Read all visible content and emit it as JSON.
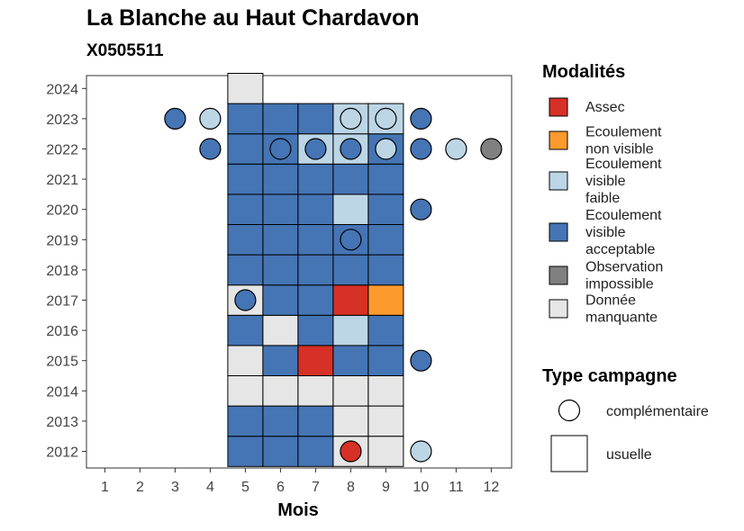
{
  "title": "La Blanche au Haut Chardavon",
  "subtitle": "X0505511",
  "chart_data": {
    "type": "heatmap",
    "xlabel": "Mois",
    "ylabel": "",
    "x_ticks": [
      "1",
      "2",
      "3",
      "4",
      "5",
      "6",
      "7",
      "8",
      "9",
      "10",
      "11",
      "12"
    ],
    "y_ticks": [
      "2012",
      "2013",
      "2014",
      "2015",
      "2016",
      "2017",
      "2018",
      "2019",
      "2020",
      "2021",
      "2022",
      "2023",
      "2024"
    ],
    "grid": false,
    "colors": {
      "assec": "#d73027",
      "non_visible": "#fd9a2e",
      "faible": "#bcd6e6",
      "acceptable": "#4575b4",
      "impossible": "#808080",
      "manquante": "#e6e6e6"
    },
    "legend_position": "right",
    "legend": {
      "title": "Modalités",
      "items": [
        {
          "key": "assec",
          "label": [
            "Assec"
          ]
        },
        {
          "key": "non_visible",
          "label": [
            "Ecoulement",
            "non visible"
          ]
        },
        {
          "key": "faible",
          "label": [
            "Ecoulement",
            "visible",
            "faible"
          ]
        },
        {
          "key": "acceptable",
          "label": [
            "Ecoulement",
            "visible",
            "acceptable"
          ]
        },
        {
          "key": "impossible",
          "label": [
            "Observation",
            "impossible"
          ]
        },
        {
          "key": "manquante",
          "label": [
            "Donnée",
            "manquante"
          ]
        }
      ]
    },
    "legend_type": {
      "title": "Type campagne",
      "items": [
        {
          "shape": "circle",
          "label": "complémentaire"
        },
        {
          "shape": "square",
          "label": "usuelle"
        }
      ]
    },
    "usuelle": [
      {
        "year": 2012,
        "month": 5,
        "value": "acceptable"
      },
      {
        "year": 2012,
        "month": 6,
        "value": "acceptable"
      },
      {
        "year": 2012,
        "month": 7,
        "value": "acceptable"
      },
      {
        "year": 2012,
        "month": 8,
        "value": "manquante"
      },
      {
        "year": 2012,
        "month": 9,
        "value": "manquante"
      },
      {
        "year": 2013,
        "month": 5,
        "value": "acceptable"
      },
      {
        "year": 2013,
        "month": 6,
        "value": "acceptable"
      },
      {
        "year": 2013,
        "month": 7,
        "value": "acceptable"
      },
      {
        "year": 2013,
        "month": 8,
        "value": "manquante"
      },
      {
        "year": 2013,
        "month": 9,
        "value": "manquante"
      },
      {
        "year": 2014,
        "month": 5,
        "value": "manquante"
      },
      {
        "year": 2014,
        "month": 6,
        "value": "manquante"
      },
      {
        "year": 2014,
        "month": 7,
        "value": "manquante"
      },
      {
        "year": 2014,
        "month": 8,
        "value": "manquante"
      },
      {
        "year": 2014,
        "month": 9,
        "value": "manquante"
      },
      {
        "year": 2015,
        "month": 5,
        "value": "manquante"
      },
      {
        "year": 2015,
        "month": 6,
        "value": "acceptable"
      },
      {
        "year": 2015,
        "month": 7,
        "value": "assec"
      },
      {
        "year": 2015,
        "month": 8,
        "value": "acceptable"
      },
      {
        "year": 2015,
        "month": 9,
        "value": "acceptable"
      },
      {
        "year": 2016,
        "month": 5,
        "value": "acceptable"
      },
      {
        "year": 2016,
        "month": 6,
        "value": "manquante"
      },
      {
        "year": 2016,
        "month": 7,
        "value": "acceptable"
      },
      {
        "year": 2016,
        "month": 8,
        "value": "faible"
      },
      {
        "year": 2016,
        "month": 9,
        "value": "acceptable"
      },
      {
        "year": 2017,
        "month": 5,
        "value": "manquante"
      },
      {
        "year": 2017,
        "month": 6,
        "value": "acceptable"
      },
      {
        "year": 2017,
        "month": 7,
        "value": "acceptable"
      },
      {
        "year": 2017,
        "month": 8,
        "value": "assec"
      },
      {
        "year": 2017,
        "month": 9,
        "value": "non_visible"
      },
      {
        "year": 2018,
        "month": 5,
        "value": "acceptable"
      },
      {
        "year": 2018,
        "month": 6,
        "value": "acceptable"
      },
      {
        "year": 2018,
        "month": 7,
        "value": "acceptable"
      },
      {
        "year": 2018,
        "month": 8,
        "value": "acceptable"
      },
      {
        "year": 2018,
        "month": 9,
        "value": "acceptable"
      },
      {
        "year": 2019,
        "month": 5,
        "value": "acceptable"
      },
      {
        "year": 2019,
        "month": 6,
        "value": "acceptable"
      },
      {
        "year": 2019,
        "month": 7,
        "value": "acceptable"
      },
      {
        "year": 2019,
        "month": 8,
        "value": "acceptable"
      },
      {
        "year": 2019,
        "month": 9,
        "value": "acceptable"
      },
      {
        "year": 2020,
        "month": 5,
        "value": "acceptable"
      },
      {
        "year": 2020,
        "month": 6,
        "value": "acceptable"
      },
      {
        "year": 2020,
        "month": 7,
        "value": "acceptable"
      },
      {
        "year": 2020,
        "month": 8,
        "value": "faible"
      },
      {
        "year": 2020,
        "month": 9,
        "value": "acceptable"
      },
      {
        "year": 2021,
        "month": 5,
        "value": "acceptable"
      },
      {
        "year": 2021,
        "month": 6,
        "value": "acceptable"
      },
      {
        "year": 2021,
        "month": 7,
        "value": "acceptable"
      },
      {
        "year": 2021,
        "month": 8,
        "value": "acceptable"
      },
      {
        "year": 2021,
        "month": 9,
        "value": "acceptable"
      },
      {
        "year": 2022,
        "month": 5,
        "value": "acceptable"
      },
      {
        "year": 2022,
        "month": 6,
        "value": "acceptable"
      },
      {
        "year": 2022,
        "month": 7,
        "value": "faible"
      },
      {
        "year": 2022,
        "month": 8,
        "value": "faible"
      },
      {
        "year": 2022,
        "month": 9,
        "value": "acceptable"
      },
      {
        "year": 2023,
        "month": 5,
        "value": "acceptable"
      },
      {
        "year": 2023,
        "month": 6,
        "value": "acceptable"
      },
      {
        "year": 2023,
        "month": 7,
        "value": "acceptable"
      },
      {
        "year": 2023,
        "month": 8,
        "value": "faible"
      },
      {
        "year": 2023,
        "month": 9,
        "value": "faible"
      },
      {
        "year": 2024,
        "month": 5,
        "value": "manquante"
      }
    ],
    "complementaire": [
      {
        "year": 2012,
        "month": 8,
        "value": "assec"
      },
      {
        "year": 2012,
        "month": 10,
        "value": "faible"
      },
      {
        "year": 2015,
        "month": 10,
        "value": "acceptable"
      },
      {
        "year": 2017,
        "month": 5,
        "value": "acceptable"
      },
      {
        "year": 2019,
        "month": 8,
        "value": "acceptable"
      },
      {
        "year": 2020,
        "month": 10,
        "value": "acceptable"
      },
      {
        "year": 2022,
        "month": 4,
        "value": "acceptable"
      },
      {
        "year": 2022,
        "month": 6,
        "value": "acceptable"
      },
      {
        "year": 2022,
        "month": 7,
        "value": "acceptable"
      },
      {
        "year": 2022,
        "month": 8,
        "value": "acceptable"
      },
      {
        "year": 2022,
        "month": 9,
        "value": "faible"
      },
      {
        "year": 2022,
        "month": 10,
        "value": "acceptable"
      },
      {
        "year": 2022,
        "month": 11,
        "value": "faible"
      },
      {
        "year": 2022,
        "month": 12,
        "value": "impossible"
      },
      {
        "year": 2023,
        "month": 3,
        "value": "acceptable"
      },
      {
        "year": 2023,
        "month": 4,
        "value": "faible"
      },
      {
        "year": 2023,
        "month": 8,
        "value": "faible"
      },
      {
        "year": 2023,
        "month": 9,
        "value": "faible"
      },
      {
        "year": 2023,
        "month": 10,
        "value": "acceptable"
      }
    ]
  }
}
